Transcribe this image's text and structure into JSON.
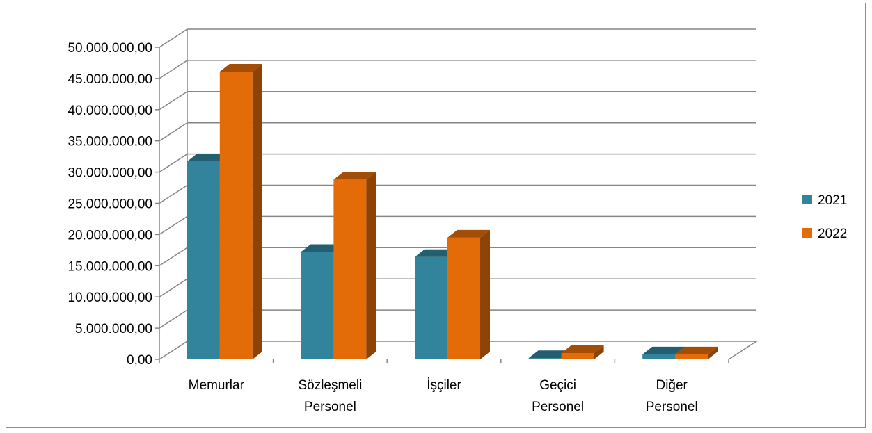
{
  "chart_data": {
    "type": "bar",
    "categories": [
      [
        "Memurlar"
      ],
      [
        "Sözleşmeli",
        "Personel"
      ],
      [
        "İşçiler"
      ],
      [
        "Geçici",
        "Personel"
      ],
      [
        "Diğer",
        "Personel"
      ]
    ],
    "series": [
      {
        "name": "2021",
        "color": "#31849b",
        "values": [
          31700000,
          17200000,
          16400000,
          200000,
          800000
        ]
      },
      {
        "name": "2022",
        "color": "#e36c09",
        "values": [
          46100000,
          28800000,
          19500000,
          1000000,
          800000
        ]
      }
    ],
    "ylim": [
      0,
      50000000
    ],
    "ytick_step": 5000000,
    "ytick_labels": [
      "0,00",
      "5.000.000,00",
      "10.000.000,00",
      "15.000.000,00",
      "20.000.000,00",
      "25.000.000,00",
      "30.000.000,00",
      "35.000.000,00",
      "40.000.000,00",
      "45.000.000,00",
      "50.000.000,00"
    ],
    "grid": true,
    "legend_position": "right",
    "style": "3d-clustered-column"
  }
}
